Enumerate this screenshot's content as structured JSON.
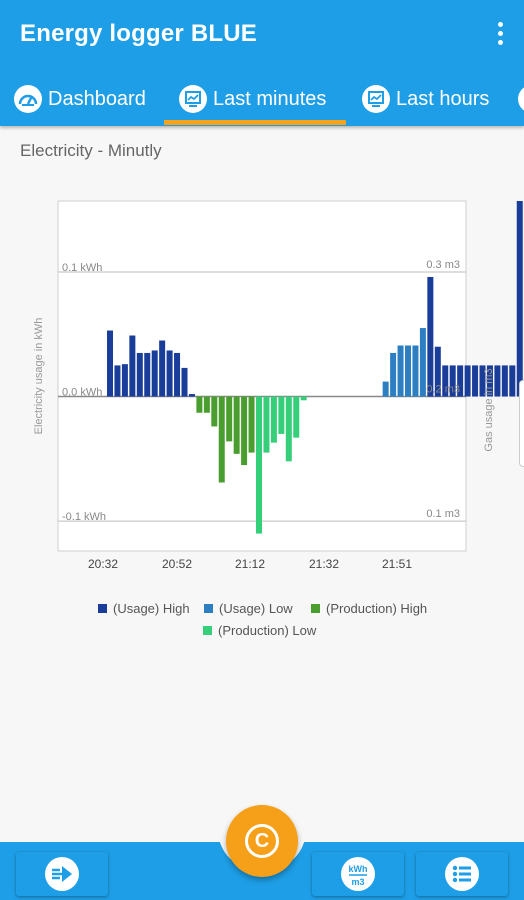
{
  "app": {
    "title": "Energy logger BLUE",
    "menu_icon": "more-vert-icon"
  },
  "tabs": [
    {
      "label": "Dashboard",
      "icon": "dashboard-icon",
      "selected": false
    },
    {
      "label": "Last minutes",
      "icon": "chart-icon",
      "selected": true
    },
    {
      "label": "Last hours",
      "icon": "chart-icon",
      "selected": false
    }
  ],
  "subtitle": "Electricity - Minutly",
  "chart_data": {
    "type": "bar",
    "title": "",
    "ylabel": "Electricity usage in kWh",
    "y2label": "Gas usage in m3",
    "y_ticks": [
      "0.1 kWh",
      "0.0 kWh",
      "-0.1 kWh"
    ],
    "y2_ticks": [
      "0.3 m3",
      "0.2 m3",
      "0.1 m3"
    ],
    "x_ticks": [
      "20:32",
      "20:52",
      "21:12",
      "21:32",
      "21:51"
    ],
    "ylim": [
      -0.124,
      0.157
    ],
    "y2lim": [
      0.076,
      0.357
    ],
    "grid": true,
    "legend_position": "bottom",
    "series": [
      {
        "name": "(Usage) High",
        "color": "#1a3d99",
        "bars": [
          [
            0,
            0.053
          ],
          [
            1,
            0.025
          ],
          [
            2,
            0.026
          ],
          [
            3,
            0.049
          ],
          [
            4,
            0.035
          ],
          [
            5,
            0.035
          ],
          [
            6,
            0.037
          ],
          [
            7,
            0.045
          ],
          [
            8,
            0.037
          ],
          [
            9,
            0.035
          ],
          [
            10,
            0.023
          ],
          [
            11,
            0.002
          ],
          [
            43,
            0.096
          ],
          [
            44,
            0.04
          ],
          [
            45,
            0.025
          ],
          [
            46,
            0.025
          ],
          [
            47,
            0.025
          ],
          [
            48,
            0.025
          ],
          [
            49,
            0.025
          ],
          [
            50,
            0.025
          ],
          [
            51,
            0.025
          ],
          [
            52,
            0.025
          ],
          [
            53,
            0.025
          ],
          [
            54,
            0.025
          ],
          [
            55,
            0.157
          ]
        ]
      },
      {
        "name": "(Usage) Low",
        "color": "#2d7fc1",
        "bars": [
          [
            37,
            0.012
          ],
          [
            38,
            0.035
          ],
          [
            39,
            0.041
          ],
          [
            40,
            0.041
          ],
          [
            41,
            0.041
          ],
          [
            42,
            0.055
          ]
        ]
      },
      {
        "name": "(Production) High",
        "color": "#4a9e2f",
        "bars": [
          [
            12,
            -0.013
          ],
          [
            13,
            -0.013
          ],
          [
            14,
            -0.024
          ],
          [
            15,
            -0.069
          ],
          [
            16,
            -0.036
          ],
          [
            17,
            -0.046
          ],
          [
            18,
            -0.055
          ],
          [
            19,
            -0.045
          ]
        ]
      },
      {
        "name": "(Production) Low",
        "color": "#35cf7a",
        "bars": [
          [
            20,
            -0.11
          ],
          [
            21,
            -0.045
          ],
          [
            22,
            -0.037
          ],
          [
            23,
            -0.03
          ],
          [
            24,
            -0.052
          ],
          [
            25,
            -0.033
          ],
          [
            26,
            -0.003
          ]
        ]
      }
    ]
  },
  "bottom_nav": [
    {
      "icon": "arrow-right-icon"
    },
    {
      "icon": "kwh-m3-icon"
    },
    {
      "icon": "list-icon"
    }
  ],
  "fab": {
    "icon": "refresh-icon"
  },
  "colors": {
    "primary": "#1e9ee6",
    "accent": "#f6a01a"
  }
}
